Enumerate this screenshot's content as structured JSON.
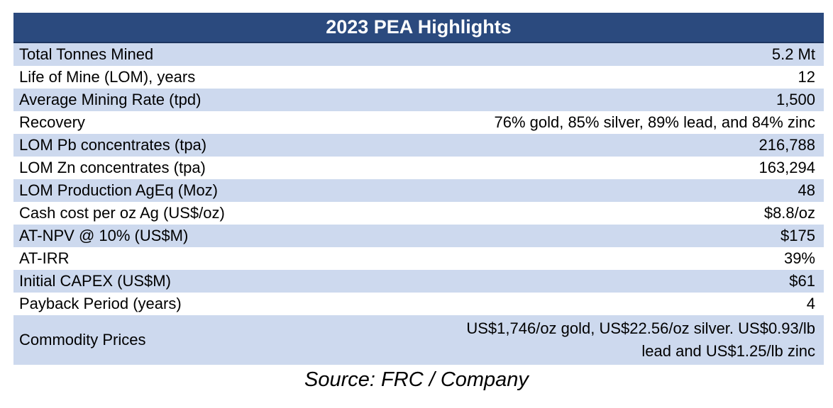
{
  "table": {
    "title": "2023 PEA Highlights",
    "rows": [
      {
        "label": "Total Tonnes Mined",
        "value": "5.2 Mt"
      },
      {
        "label": "Life of Mine (LOM), years",
        "value": "12"
      },
      {
        "label": "Average Mining Rate (tpd)",
        "value": "1,500"
      },
      {
        "label": "Recovery",
        "value": "76% gold, 85% silver, 89% lead, and 84% zinc"
      },
      {
        "label": "LOM Pb concentrates (tpa)",
        "value": "216,788"
      },
      {
        "label": "LOM Zn concentrates (tpa)",
        "value": "163,294"
      },
      {
        "label": "LOM Production AgEq (Moz)",
        "value": "48"
      },
      {
        "label": "Cash cost per oz Ag (US$/oz)",
        "value": "$8.8/oz"
      },
      {
        "label": "AT-NPV @ 10% (US$M)",
        "value": "$175"
      },
      {
        "label": "AT-IRR",
        "value": "39%"
      },
      {
        "label": "Initial CAPEX (US$M)",
        "value": "$61"
      },
      {
        "label": "Payback Period (years)",
        "value": "4"
      },
      {
        "label": "Commodity Prices",
        "value": "US$1,746/oz gold, US$22.56/oz silver. US$0.93/lb\nlead and US$1.25/lb zinc"
      }
    ]
  },
  "source": "Source: FRC / Company",
  "colors": {
    "header_bg": "#2b4a7e",
    "shaded_row": "#cdd9ee",
    "plain_row": "#ffffff"
  }
}
